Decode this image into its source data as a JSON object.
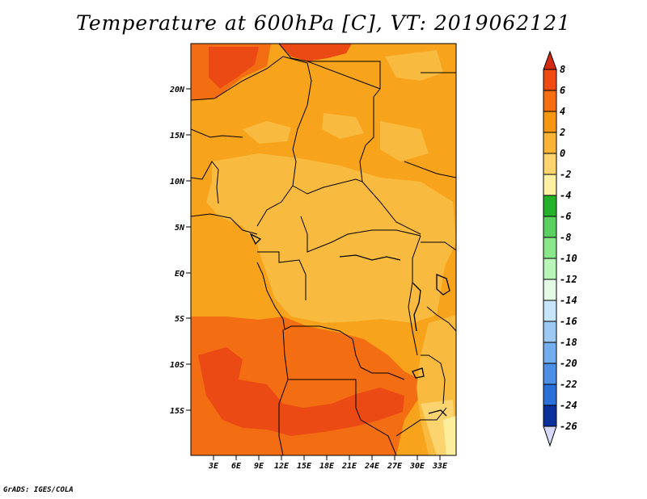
{
  "title": "Temperature at 600hPa [C], VT: 2019062121",
  "credit": "GrADS: IGES/COLA",
  "lat_ticks": [
    "20N",
    "15N",
    "10N",
    "5N",
    "EQ",
    "5S",
    "10S",
    "15S"
  ],
  "lon_ticks": [
    "3E",
    "6E",
    "9E",
    "12E",
    "15E",
    "18E",
    "21E",
    "24E",
    "27E",
    "30E",
    "33E"
  ],
  "colorbar": {
    "labels": [
      "8",
      "6",
      "4",
      "2",
      "0",
      "-2",
      "-4",
      "-6",
      "-8",
      "-10",
      "-12",
      "-14",
      "-16",
      "-18",
      "-20",
      "-22",
      "-24",
      "-26"
    ],
    "colors": [
      "#d52a12",
      "#ee4a12",
      "#f56e12",
      "#f79612",
      "#f9b438",
      "#fbd470",
      "#fdf0a2",
      "#24b22a",
      "#5ad060",
      "#8ae88a",
      "#b8f6b8",
      "#e4fae6",
      "#c6e4f7",
      "#9ccaf2",
      "#72aeee",
      "#4e90e6",
      "#2c70da",
      "#1752c2",
      "#0a309c",
      "#06146c",
      "#d6daf8"
    ]
  },
  "map_colors": {
    "2_to_4": "#f7a31b",
    "0_to_2": "#f9bb3f",
    "4_to_6": "#f36e12",
    "6_to_8": "#ec4a14",
    "-2_to_0": "#fbd46f",
    "-4_to_-2": "#fdee9c"
  }
}
